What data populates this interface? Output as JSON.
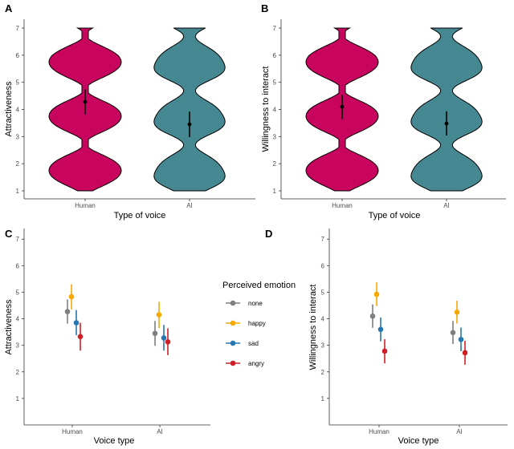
{
  "chart_data": [
    {
      "panel": "A",
      "type": "violin",
      "xlabel": "Type of voice",
      "ylabel": "Attractiveness",
      "ylim": [
        1,
        7
      ],
      "yticks": [
        "1",
        "2",
        "3",
        "4",
        "5",
        "6",
        "7"
      ],
      "categories": [
        "Human",
        "AI"
      ],
      "colors": [
        "#C8045F",
        "#468891"
      ],
      "means": [
        4.28,
        3.45
      ],
      "ci_low": [
        3.82,
        2.98
      ],
      "ci_high": [
        4.74,
        3.92
      ]
    },
    {
      "panel": "B",
      "type": "violin",
      "xlabel": "Type of voice",
      "ylabel": "Willingness to interact",
      "ylim": [
        1,
        7
      ],
      "yticks": [
        "1",
        "2",
        "3",
        "4",
        "5",
        "6",
        "7"
      ],
      "categories": [
        "Human",
        "AI"
      ],
      "colors": [
        "#C8045F",
        "#468891"
      ],
      "means": [
        4.1,
        3.48
      ],
      "ci_low": [
        3.64,
        3.04
      ],
      "ci_high": [
        4.54,
        3.93
      ]
    },
    {
      "panel": "C",
      "type": "pointrange",
      "xlabel": "Voice type",
      "ylabel": "Attractiveness",
      "ylim": [
        0,
        7.4
      ],
      "yticks": [
        "1",
        "2",
        "3",
        "4",
        "5",
        "6",
        "7"
      ],
      "categories": [
        "Human",
        "AI"
      ],
      "series": [
        {
          "name": "none",
          "color": "#7F7F7F",
          "values": [
            4.27,
            3.45
          ],
          "ci_low": [
            3.82,
            2.98
          ],
          "ci_high": [
            4.73,
            3.92
          ]
        },
        {
          "name": "happy",
          "color": "#F5A800",
          "values": [
            4.83,
            4.15
          ],
          "ci_low": [
            4.35,
            3.65
          ],
          "ci_high": [
            5.3,
            4.64
          ]
        },
        {
          "name": "sad",
          "color": "#2677AF",
          "values": [
            3.85,
            3.28
          ],
          "ci_low": [
            3.38,
            2.8
          ],
          "ci_high": [
            4.33,
            3.77
          ]
        },
        {
          "name": "angry",
          "color": "#D02027",
          "values": [
            3.33,
            3.13
          ],
          "ci_low": [
            2.8,
            2.63
          ],
          "ci_high": [
            3.85,
            3.64
          ]
        }
      ]
    },
    {
      "panel": "D",
      "type": "pointrange",
      "xlabel": "Voice type",
      "ylabel": "Willingness to interact",
      "ylim": [
        0,
        7.4
      ],
      "yticks": [
        "1",
        "2",
        "3",
        "4",
        "5",
        "6",
        "7"
      ],
      "categories": [
        "Human",
        "AI"
      ],
      "series": [
        {
          "name": "none",
          "color": "#7F7F7F",
          "values": [
            4.1,
            3.48
          ],
          "ci_low": [
            3.66,
            3.05
          ],
          "ci_high": [
            4.54,
            3.92
          ]
        },
        {
          "name": "happy",
          "color": "#F5A800",
          "values": [
            4.92,
            4.25
          ],
          "ci_low": [
            4.48,
            3.82
          ],
          "ci_high": [
            5.37,
            4.68
          ]
        },
        {
          "name": "sad",
          "color": "#2677AF",
          "values": [
            3.6,
            3.22
          ],
          "ci_low": [
            3.15,
            2.78
          ],
          "ci_high": [
            4.05,
            3.67
          ]
        },
        {
          "name": "angry",
          "color": "#D02027",
          "values": [
            2.78,
            2.72
          ],
          "ci_low": [
            2.32,
            2.27
          ],
          "ci_high": [
            3.23,
            3.17
          ]
        }
      ]
    }
  ],
  "legend": {
    "title": "Perceived emotion",
    "items": [
      {
        "label": "none",
        "color": "#7F7F7F"
      },
      {
        "label": "happy",
        "color": "#F5A800"
      },
      {
        "label": "sad",
        "color": "#2677AF"
      },
      {
        "label": "angry",
        "color": "#D02027"
      }
    ]
  }
}
